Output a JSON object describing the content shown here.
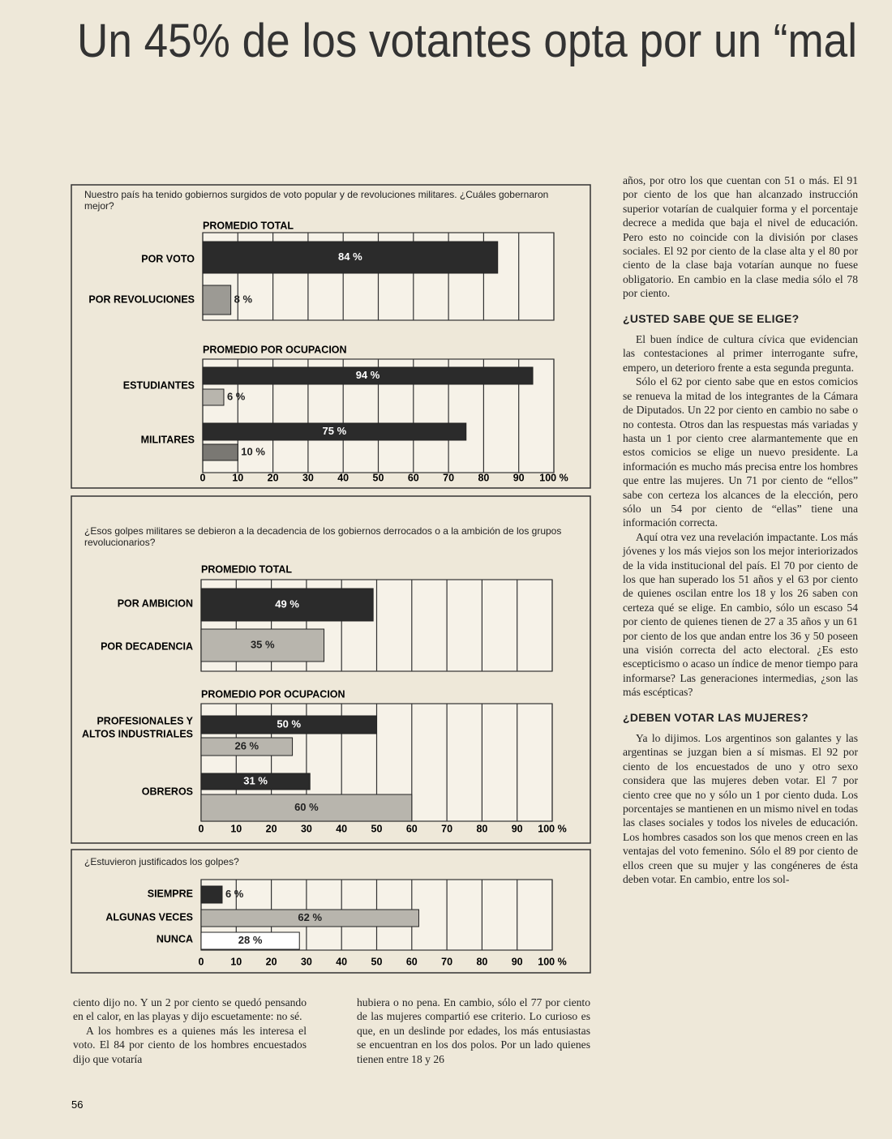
{
  "title": "Un 45% de los votantes opta por un “mal",
  "charts": [
    {
      "question": "Nuestro país ha tenido gobiernos surgidos de voto popular y de revoluciones militares. ¿Cuáles gobernaron mejor?",
      "xlim": [
        0,
        100
      ],
      "xticks": [
        0,
        10,
        20,
        30,
        40,
        50,
        60,
        70,
        80,
        90,
        {
          "value": 100,
          "label": "100 %"
        }
      ],
      "groups": [
        {
          "heading": "PROMEDIO TOTAL",
          "rows": [
            {
              "label": [
                "POR VOTO"
              ],
              "bars": [
                {
                  "value": 84,
                  "value_label": "84 %",
                  "color": "#2b2b2b"
                }
              ]
            },
            {
              "label": [
                "POR REVOLUCIONES"
              ],
              "bars": [
                {
                  "value": 8,
                  "value_label": "8 %",
                  "color": "#9c9a94"
                }
              ]
            }
          ]
        },
        {
          "heading": "PROMEDIO POR OCUPACION",
          "rows": [
            {
              "label": [
                "ESTUDIANTES"
              ],
              "bars": [
                {
                  "value": 94,
                  "value_label": "94 %",
                  "color": "#2b2b2b"
                },
                {
                  "value": 6,
                  "value_label": "6 %",
                  "color": "#b8b5ad"
                }
              ]
            },
            {
              "label": [
                "MILITARES"
              ],
              "bars": [
                {
                  "value": 75,
                  "value_label": "75 %",
                  "color": "#2b2b2b"
                },
                {
                  "value": 10,
                  "value_label": "10 %",
                  "color": "#7a7873"
                }
              ]
            }
          ]
        }
      ]
    },
    {
      "question": "¿Esos golpes militares se debieron a la decadencia de los gobiernos derrocados o a la ambición de los grupos revolucionarios?",
      "xlim": [
        0,
        100
      ],
      "xticks": [
        0,
        10,
        20,
        30,
        40,
        50,
        60,
        70,
        80,
        90,
        {
          "value": 100,
          "label": "100 %"
        }
      ],
      "groups": [
        {
          "heading": "PROMEDIO TOTAL",
          "rows": [
            {
              "label": [
                "POR AMBICION"
              ],
              "bars": [
                {
                  "value": 49,
                  "value_label": "49 %",
                  "color": "#2b2b2b"
                }
              ]
            },
            {
              "label": [
                "POR DECADENCIA"
              ],
              "bars": [
                {
                  "value": 35,
                  "value_label": "35 %",
                  "color": "#b8b5ad"
                }
              ]
            }
          ]
        },
        {
          "heading": "PROMEDIO POR OCUPACION",
          "rows": [
            {
              "label": [
                "PROFESIONALES Y",
                "ALTOS INDUSTRIALES"
              ],
              "bars": [
                {
                  "value": 50,
                  "value_label": "50 %",
                  "color": "#2b2b2b"
                },
                {
                  "value": 26,
                  "value_label": "26 %",
                  "color": "#b8b5ad"
                }
              ]
            },
            {
              "label": [
                "OBREROS"
              ],
              "bars": [
                {
                  "value": 31,
                  "value_label": "31 %",
                  "color": "#2b2b2b"
                },
                {
                  "value": 60,
                  "value_label": "60 %",
                  "color": "#b8b5ad"
                }
              ]
            }
          ]
        }
      ]
    },
    {
      "question": "¿Estuvieron justificados los golpes?",
      "xlim": [
        0,
        100
      ],
      "xticks": [
        0,
        10,
        20,
        30,
        40,
        50,
        60,
        70,
        80,
        90,
        {
          "value": 100,
          "label": "100 %"
        }
      ],
      "groups": [
        {
          "rows": [
            {
              "label": [
                "SIEMPRE"
              ],
              "bars": [
                {
                  "value": 6,
                  "value_label": "6 %",
                  "color": "#2b2b2b"
                }
              ]
            },
            {
              "label": [
                "ALGUNAS VECES"
              ],
              "bars": [
                {
                  "value": 62,
                  "value_label": "62 %",
                  "color": "#b8b5ad"
                }
              ]
            },
            {
              "label": [
                "NUNCA"
              ],
              "bars": [
                {
                  "value": 28,
                  "value_label": "28 %",
                  "color": "#ffffff"
                }
              ]
            }
          ]
        }
      ]
    }
  ],
  "right_column": {
    "intro": "años, por otro los que cuentan con 51 o más. El 91 por ciento de los que han alcanzado instrucción superior votarían de cualquier forma y el porcentaje decrece a medida que baja el nivel de educación. Pero esto no coincide con la división por clases sociales. El 92 por ciento de la clase alta y el 80 por ciento de la clase baja votarían aunque no fuese obligatorio. En cambio en la clase media sólo el 78 por ciento.",
    "sections": [
      {
        "heading": "¿USTED SABE QUE SE ELIGE?",
        "paragraphs": [
          "El buen índice de cultura cívica que evidencian las contestaciones al primer interrogante sufre, empero, un deterioro frente a esta segunda pregunta.",
          "Sólo el 62 por ciento sabe que en estos comicios se renueva la mitad de los integrantes de la Cámara de Diputados. Un 22 por ciento en cambio no sabe o no contesta. Otros dan las respuestas más variadas y hasta un 1 por ciento cree alarmantemente que en estos comicios se elige un nuevo presidente. La información es mucho más precisa entre los hombres que entre las mujeres. Un 71 por ciento de “ellos” sabe con certeza los alcances de la elección, pero sólo un 54 por ciento de “ellas” tiene una información correcta.",
          "Aquí otra vez una revelación impactante. Los más jóvenes y los más viejos son los mejor interiorizados de la vida institucional del país. El 70 por ciento de los que han superado los 51 años y el 63 por ciento de quienes oscilan entre los 18 y los 26 saben con certeza qué se elige. En cambio, sólo un escaso 54 por ciento de quienes tienen de 27 a 35 años y un 61 por ciento de los que andan entre los 36 y 50 poseen una visión correcta del acto electoral. ¿Es esto escepticismo o acaso un índice de menor tiempo para informarse? Las generaciones intermedias, ¿son las más escépticas?"
        ]
      },
      {
        "heading": "¿DEBEN VOTAR LAS MUJERES?",
        "paragraphs": [
          "Ya lo dijimos. Los argentinos son galantes y las argentinas se juzgan bien a sí mismas. El 92 por ciento de los encuestados de uno y otro sexo considera que las mujeres deben votar. El 7 por ciento cree que no y sólo un 1 por ciento duda. Los porcentajes se mantienen en un mismo nivel en todas las clases sociales y todos los niveles de educación. Los hombres casados son los que menos creen en las ventajas del voto femenino. Sólo el 89 por ciento de ellos creen que su mujer y las congéneres de ésta deben votar. En cambio, entre los sol-"
        ]
      }
    ]
  },
  "bottom_left": {
    "paragraphs": [
      "ciento dijo no. Y un 2 por ciento se quedó pensando en el calor, en las playas y dijo escuetamente: no sé.",
      "A los hombres es a quienes más les interesa el voto. El 84 por ciento de los hombres encuestados dijo que votaría"
    ]
  },
  "bottom_middle": {
    "paragraphs": [
      "hubiera o no pena. En cambio, sólo el 77 por ciento de las mujeres compartió ese criterio. Lo curioso es que, en un deslinde por edades, los más entusiastas se encuentran en los dos polos. Por un lado quienes tienen entre 18 y 26"
    ]
  },
  "page_number": "56"
}
